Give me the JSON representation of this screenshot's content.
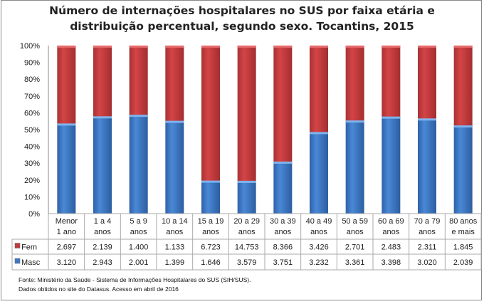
{
  "chart_data": {
    "type": "bar",
    "stacking": "percent",
    "title_lines": [
      "Número de internações hospitalares no SUS por faixa etária e",
      "distribuição percentual, segundo sexo. Tocantins, 2015"
    ],
    "categories": [
      [
        "Menor",
        "1 ano"
      ],
      [
        "1 a 4",
        "anos"
      ],
      [
        "5 a 9",
        "anos"
      ],
      [
        "10 a 14",
        "anos"
      ],
      [
        "15 a 19",
        "anos"
      ],
      [
        "20 a 29",
        "anos"
      ],
      [
        "30 a 39",
        "anos"
      ],
      [
        "40 a 49",
        "anos"
      ],
      [
        "50 a 59",
        "anos"
      ],
      [
        "60 a 69",
        "anos"
      ],
      [
        "70 a 79",
        "anos"
      ],
      [
        "80 anos",
        "e mais"
      ]
    ],
    "series": [
      {
        "name": "Fem",
        "color": "#c0393b",
        "values": [
          2697,
          2139,
          1400,
          1133,
          6723,
          14753,
          8366,
          3426,
          2701,
          2483,
          2311,
          1845
        ],
        "labels": [
          "2.697",
          "2.139",
          "1.400",
          "1.133",
          "6.723",
          "14.753",
          "8.366",
          "3.426",
          "2.701",
          "2.483",
          "2.311",
          "1.845"
        ]
      },
      {
        "name": "Masc",
        "color": "#3c78c4",
        "values": [
          3120,
          2943,
          2001,
          1399,
          1646,
          3579,
          3751,
          3232,
          3361,
          3398,
          3020,
          2039
        ],
        "labels": [
          "3.120",
          "2.943",
          "2.001",
          "1.399",
          "1.646",
          "3.579",
          "3.751",
          "3.232",
          "3.361",
          "3.398",
          "3.020",
          "2.039"
        ]
      }
    ],
    "yticks": [
      "0%",
      "10%",
      "20%",
      "30%",
      "40%",
      "50%",
      "60%",
      "70%",
      "80%",
      "90%",
      "100%"
    ],
    "ylim": [
      0,
      100
    ],
    "grid": false,
    "legend": "data-table"
  },
  "source": {
    "line1": "Fonte: Ministério da Saúde - Sistema de Informações Hospitalares do SUS (SIH/SUS).",
    "line2": "Dados obtidos no site do Datasus. Acesso em abril de 2016"
  }
}
